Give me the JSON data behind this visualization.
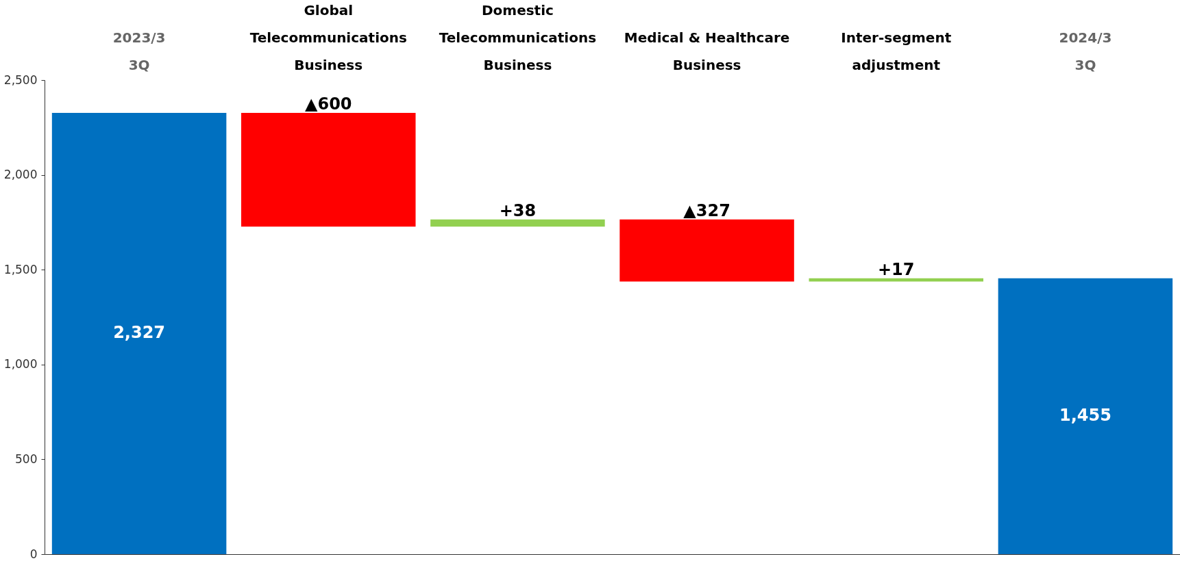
{
  "chart_data": {
    "type": "bar",
    "categories": [
      "2023/3\n3Q",
      "Global\nTelecommunications\nBusiness",
      "Domestic\nTelecommunications\nBusiness",
      "Medical & Healthcare\nBusiness",
      "Inter-segment\nadjustment",
      "2024/3\n3Q"
    ],
    "values": [
      2327,
      -600,
      38,
      -327,
      17,
      1455
    ],
    "base": [
      0,
      2327,
      1727,
      1765,
      1438,
      0
    ],
    "colors": [
      "#0070c0",
      "#ff0000",
      "#92d050",
      "#ff0000",
      "#92d050",
      "#0070c0"
    ],
    "value_labels": [
      "2,327",
      "▲600",
      "+38",
      "▲327",
      "+17",
      "1,455"
    ],
    "ylim": [
      0,
      2500
    ],
    "yticks": [
      0,
      500,
      {
        "value": 1000,
        "label": "1,000"
      },
      {
        "value": 1500,
        "label": "1,500"
      },
      {
        "value": 2000,
        "label": "2,000"
      },
      {
        "value": 2500,
        "label": "2,500"
      }
    ],
    "grid": false
  }
}
